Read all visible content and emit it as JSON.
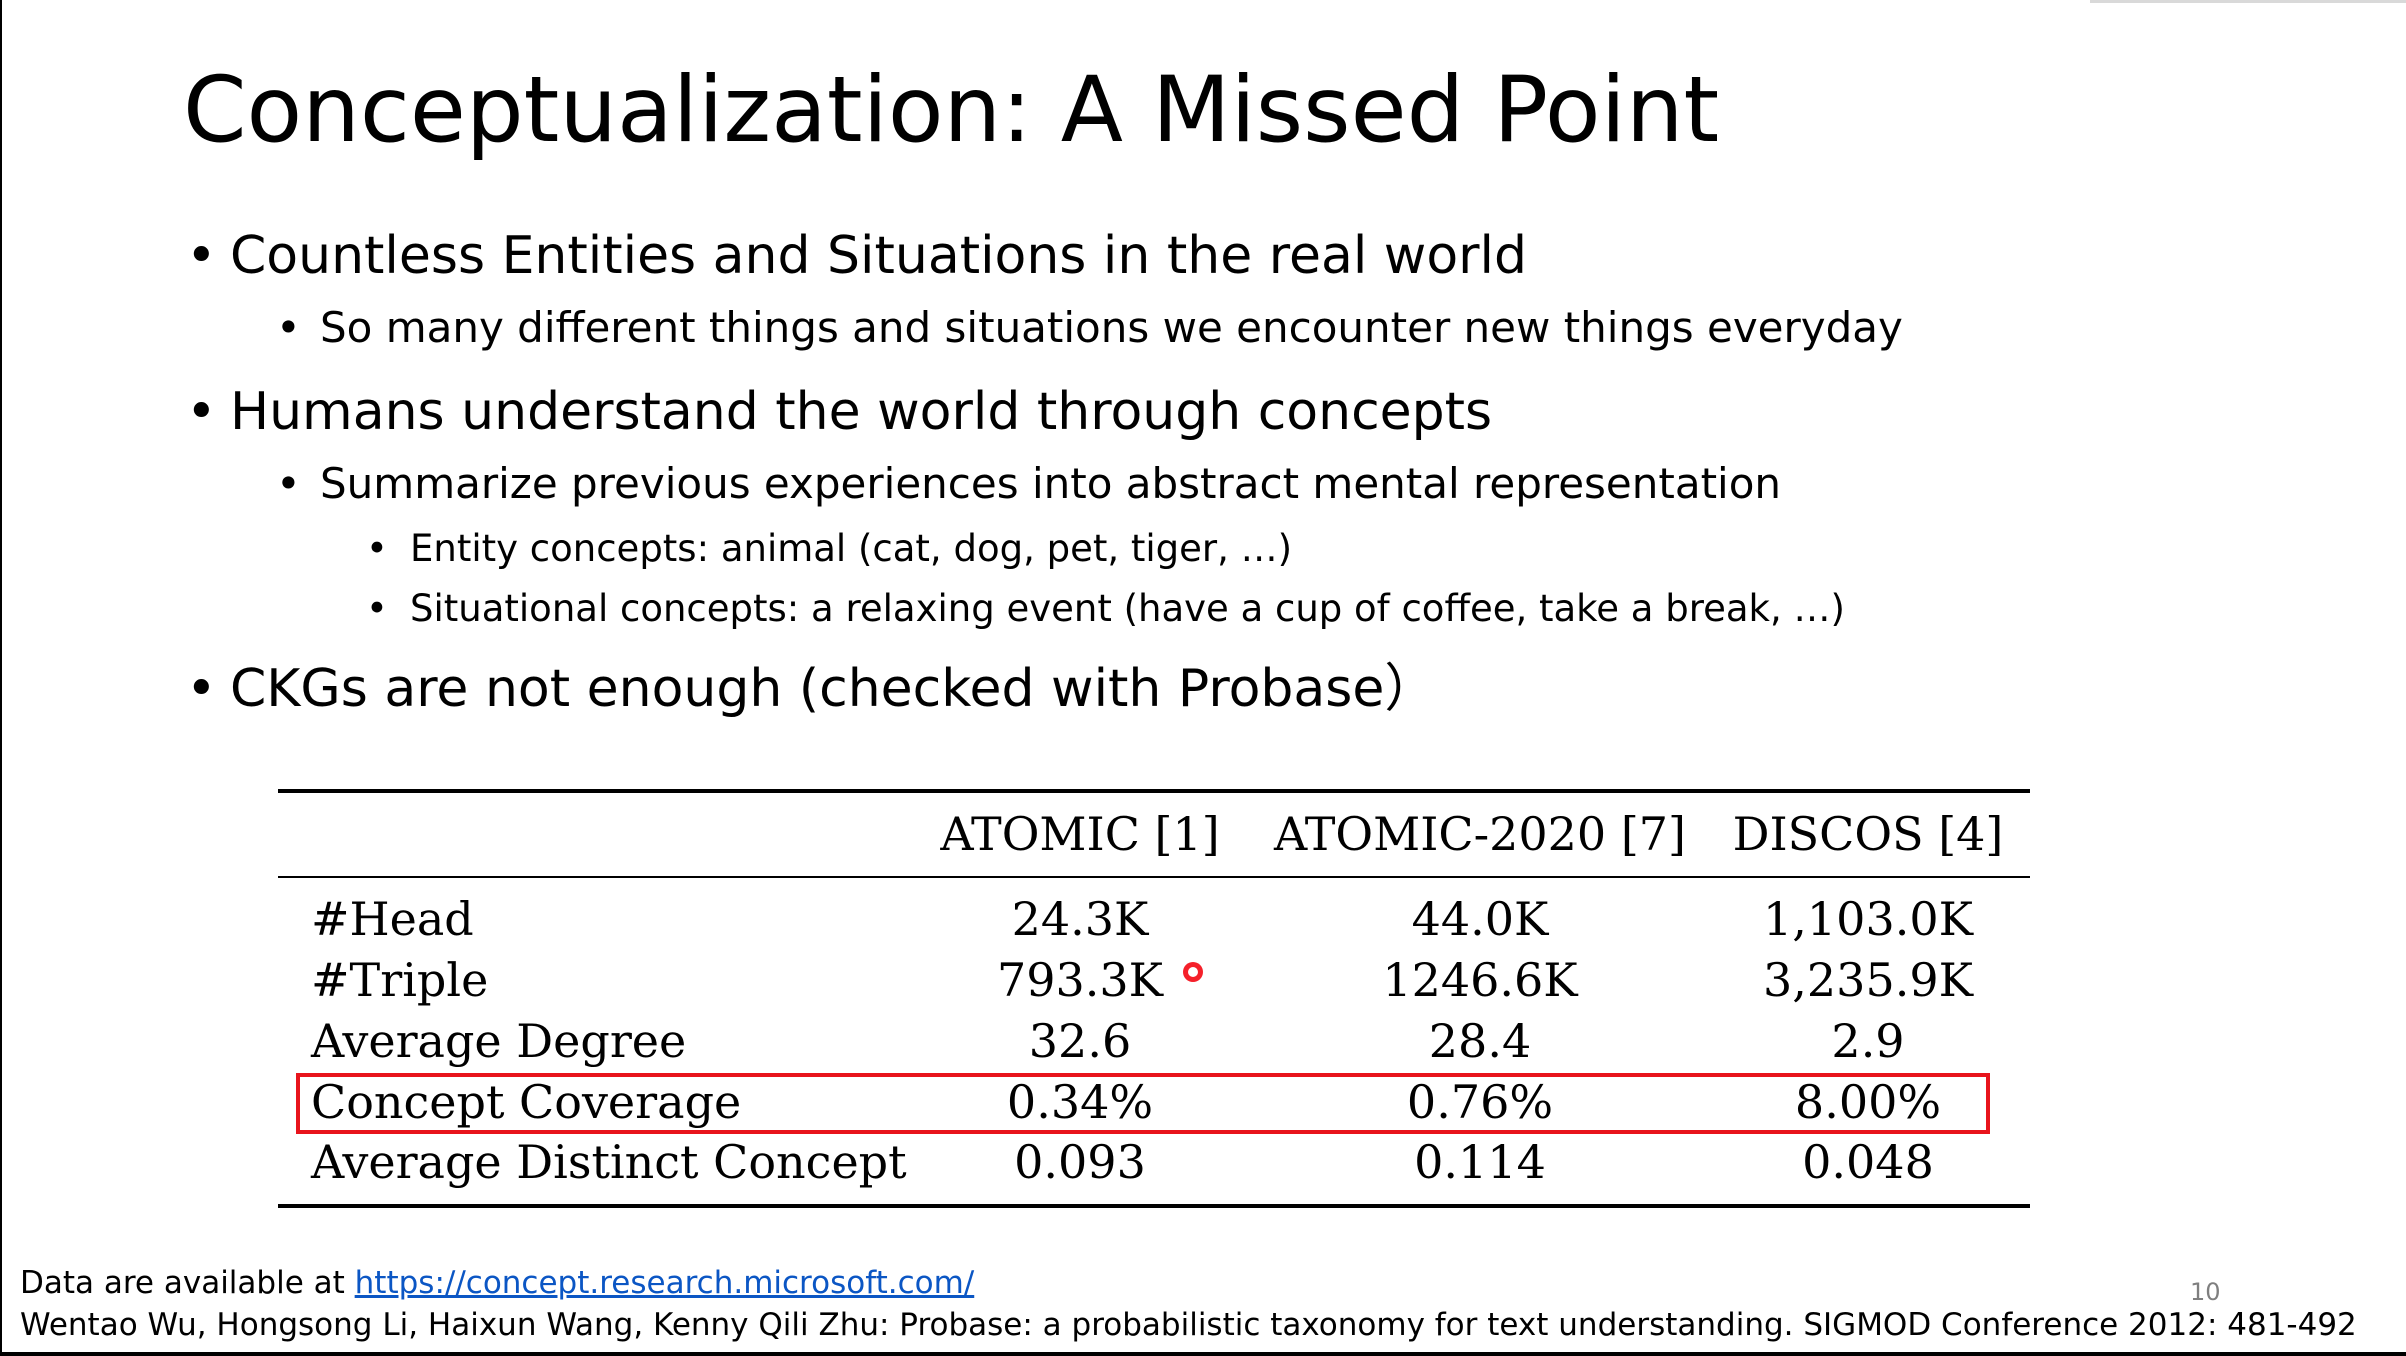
{
  "slide": {
    "title": "Conceptualization: A Missed Point",
    "bullets": [
      {
        "text": "Countless Entities and Situations in the real world"
      },
      {
        "text": "So many different things and situations we encounter new things everyday"
      },
      {
        "text": "Humans understand the world through concepts"
      },
      {
        "text": "Summarize previous experiences into abstract mental representation"
      },
      {
        "text": "Entity concepts: animal (cat, dog, pet, tiger, …)"
      },
      {
        "text": "Situational concepts: a relaxing event (have a cup of coffee, take a break, …)"
      },
      {
        "text": "CKGs are not enough (checked with Probase）"
      }
    ],
    "bullet_glyph": "•",
    "table": {
      "columns": [
        "ATOMIC [1]",
        "ATOMIC-2020 [7]",
        "DISCOS [4]"
      ],
      "rows": [
        {
          "label": "#Head",
          "values": [
            "24.3K",
            "44.0K",
            "1,103.0K"
          ]
        },
        {
          "label": "#Triple",
          "values": [
            "793.3K",
            "1246.6K",
            "3,235.9K"
          ]
        },
        {
          "label": "Average Degree",
          "values": [
            "32.6",
            "28.4",
            "2.9"
          ]
        },
        {
          "label": "Concept Coverage",
          "values": [
            "0.34%",
            "0.76%",
            "8.00%"
          ],
          "highlighted": true
        },
        {
          "label": "Average Distinct Concept",
          "values": [
            "0.093",
            "0.114",
            "0.048"
          ]
        }
      ],
      "highlight_color": "#e8141c"
    },
    "footer": {
      "data_prefix": "Data are available at ",
      "data_link": "https://concept.research.microsoft.com/",
      "citation": "Wentao Wu, Hongsong Li, Haixun Wang, Kenny Qili Zhu: Probase: a probabilistic taxonomy for text understanding. SIGMOD Conference 2012: 481-492"
    },
    "page_number": "10"
  }
}
